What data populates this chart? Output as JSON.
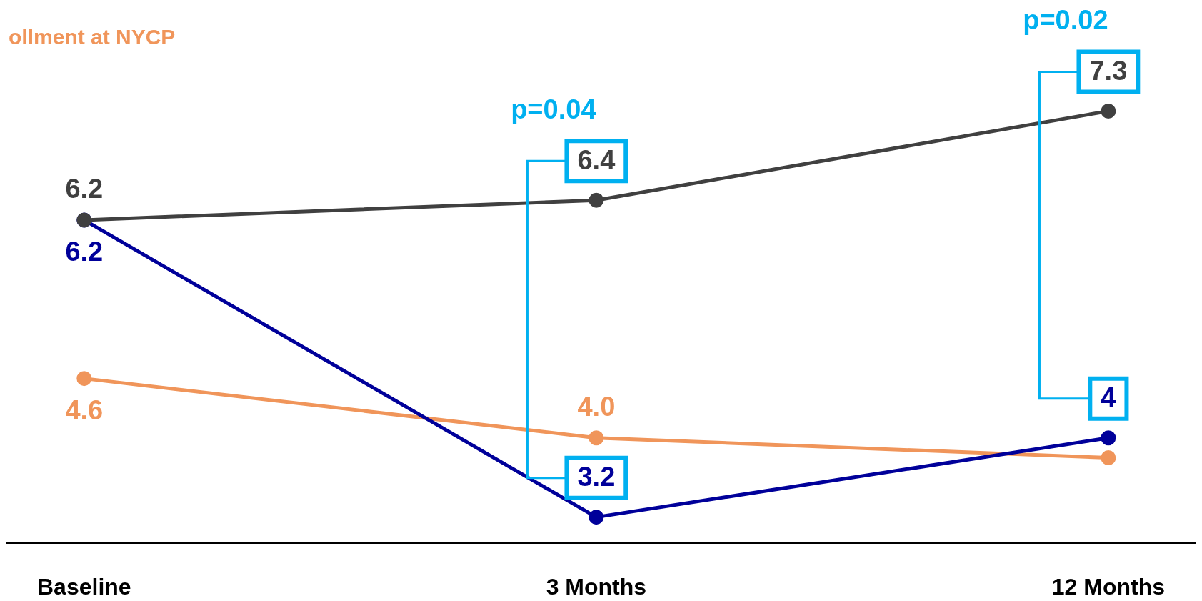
{
  "chart_data": {
    "type": "line",
    "categories": [
      "Baseline",
      "3 Months",
      "12 Months"
    ],
    "series": [
      {
        "color": "#404040",
        "values": [
          6.2,
          6.4,
          7.3
        ],
        "value_labels": [
          "6.2",
          "6.4",
          "7.3"
        ]
      },
      {
        "color": "#00009a",
        "values": [
          6.2,
          3.2,
          4
        ],
        "value_labels": [
          "6.2",
          "3.2",
          "4"
        ]
      },
      {
        "name": "ollment at NYCP",
        "color": "#f0955a",
        "values": [
          4.6,
          4.0,
          3.8
        ],
        "value_labels": [
          "4.6",
          "4.0",
          null
        ]
      }
    ],
    "annotations": [
      "p=0.04",
      "p=0.02"
    ],
    "marker": "circle",
    "line_style": "solid",
    "grid": false,
    "legend": "top left",
    "tick_labels": "x"
  }
}
